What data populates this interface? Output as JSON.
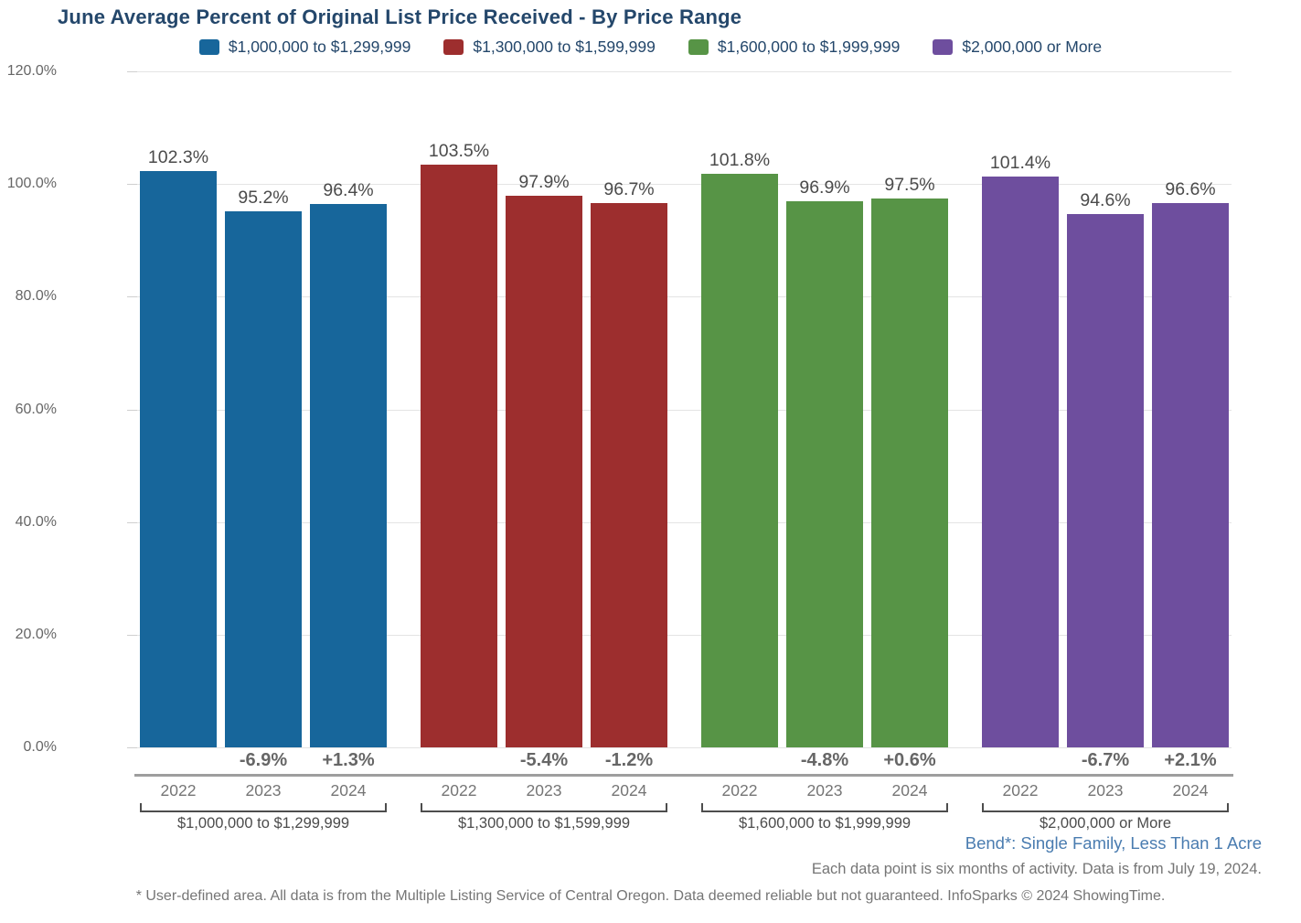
{
  "title": "June Average Percent of Original List Price Received - By Price Range",
  "chart_data": {
    "type": "bar",
    "title": "June Average Percent of Original List Price Received - By Price Range",
    "xlabel": "",
    "ylabel": "",
    "ylim": [
      0,
      120
    ],
    "grid": true,
    "legend_position": "top",
    "y_tick_labels": [
      "0.0%",
      "20.0%",
      "40.0%",
      "60.0%",
      "80.0%",
      "100.0%",
      "120.0%"
    ],
    "y_tick_values": [
      0,
      20,
      40,
      60,
      80,
      100,
      120
    ],
    "categories": [
      "2022",
      "2023",
      "2024"
    ],
    "groups": [
      {
        "label": "$1,000,000 to $1,299,999",
        "color": "#17669b",
        "values": [
          102.3,
          95.2,
          96.4
        ],
        "value_labels": [
          "102.3%",
          "95.2%",
          "96.4%"
        ],
        "changes": [
          "",
          "-6.9%",
          "+1.3%"
        ]
      },
      {
        "label": "$1,300,000 to $1,599,999",
        "color": "#9d2e2e",
        "values": [
          103.5,
          97.9,
          96.7
        ],
        "value_labels": [
          "103.5%",
          "97.9%",
          "96.7%"
        ],
        "changes": [
          "",
          "-5.4%",
          "-1.2%"
        ]
      },
      {
        "label": "$1,600,000 to $1,999,999",
        "color": "#579446",
        "values": [
          101.8,
          96.9,
          97.5
        ],
        "value_labels": [
          "101.8%",
          "96.9%",
          "97.5%"
        ],
        "changes": [
          "",
          "-4.8%",
          "+0.6%"
        ]
      },
      {
        "label": "$2,000,000 or More",
        "color": "#6e4e9e",
        "values": [
          101.4,
          94.6,
          96.6
        ],
        "value_labels": [
          "101.4%",
          "94.6%",
          "96.6%"
        ],
        "changes": [
          "",
          "-6.7%",
          "+2.1%"
        ]
      }
    ]
  },
  "footer": {
    "area_label": "Bend*: Single Family, Less Than 1 Acre",
    "data_note": "Each data point is six months of activity. Data is from July 19, 2024.",
    "disclaimer": "* User-defined area. All data is from the Multiple Listing Service of Central Oregon. Data deemed reliable but not guaranteed. InfoSparks © 2024 ShowingTime."
  },
  "colors": {
    "title_text": "#24476b",
    "axis_text": "#666666",
    "value_text": "#4b4b4b",
    "gridline": "#e4e4e4",
    "divider": "#9e9e9e",
    "area_label_text": "#4a7cb0",
    "footer_text": "#757575"
  }
}
